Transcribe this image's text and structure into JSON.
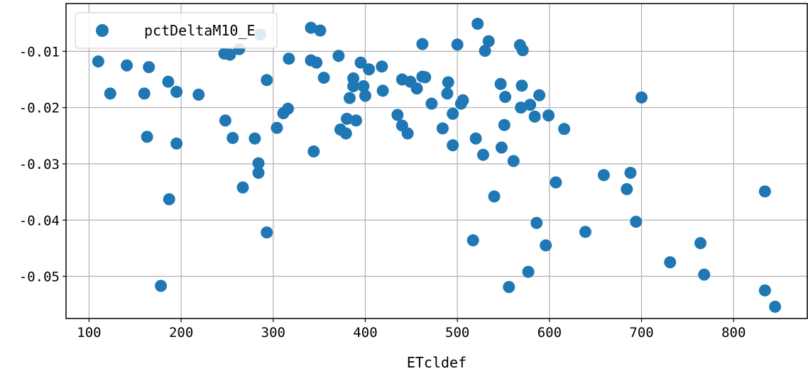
{
  "chart_data": {
    "type": "scatter",
    "xlabel": "ETcldef",
    "ylabel": "",
    "xlim": [
      75,
      880
    ],
    "ylim": [
      -0.0575,
      -0.0015
    ],
    "xticks": [
      100,
      200,
      300,
      400,
      500,
      600,
      700,
      800
    ],
    "xtick_labels": [
      "100",
      "200",
      "300",
      "400",
      "500",
      "600",
      "700",
      "800"
    ],
    "yticks": [
      -0.01,
      -0.02,
      -0.03,
      -0.04,
      -0.05
    ],
    "ytick_labels": [
      "-0.01",
      "-0.02",
      "-0.03",
      "-0.04",
      "-0.05"
    ],
    "grid": true,
    "legend_position": "top-left",
    "marker_color": "#1f77b4",
    "series": [
      {
        "name": "pctDeltaM10_E",
        "points": [
          [
            110,
            -0.0118
          ],
          [
            123,
            -0.0175
          ],
          [
            141,
            -0.0125
          ],
          [
            160,
            -0.0175
          ],
          [
            163,
            -0.0252
          ],
          [
            165,
            -0.0128
          ],
          [
            178,
            -0.0517
          ],
          [
            186,
            -0.0154
          ],
          [
            187,
            -0.0363
          ],
          [
            195,
            -0.0264
          ],
          [
            195,
            -0.0172
          ],
          [
            219,
            -0.0177
          ],
          [
            247,
            -0.0104
          ],
          [
            248,
            -0.0223
          ],
          [
            253,
            -0.0106
          ],
          [
            256,
            -0.0254
          ],
          [
            263,
            -0.0096
          ],
          [
            267,
            -0.0342
          ],
          [
            280,
            -0.0255
          ],
          [
            284,
            -0.0299
          ],
          [
            284,
            -0.0316
          ],
          [
            286,
            -0.007
          ],
          [
            293,
            -0.0422
          ],
          [
            293,
            -0.0151
          ],
          [
            304,
            -0.0236
          ],
          [
            311,
            -0.021
          ],
          [
            316,
            -0.0202
          ],
          [
            317,
            -0.0113
          ],
          [
            341,
            -0.0058
          ],
          [
            341,
            -0.0116
          ],
          [
            344,
            -0.0278
          ],
          [
            347,
            -0.012
          ],
          [
            351,
            -0.0063
          ],
          [
            355,
            -0.0147
          ],
          [
            371,
            -0.0108
          ],
          [
            373,
            -0.0239
          ],
          [
            379,
            -0.0246
          ],
          [
            380,
            -0.022
          ],
          [
            383,
            -0.0183
          ],
          [
            387,
            -0.0148
          ],
          [
            387,
            -0.0162
          ],
          [
            390,
            -0.0223
          ],
          [
            395,
            -0.012
          ],
          [
            398,
            -0.0162
          ],
          [
            400,
            -0.0179
          ],
          [
            404,
            -0.0132
          ],
          [
            418,
            -0.0127
          ],
          [
            419,
            -0.017
          ],
          [
            435,
            -0.0213
          ],
          [
            440,
            -0.015
          ],
          [
            440,
            -0.0232
          ],
          [
            446,
            -0.0246
          ],
          [
            449,
            -0.0154
          ],
          [
            456,
            -0.0166
          ],
          [
            462,
            -0.0087
          ],
          [
            462,
            -0.0145
          ],
          [
            465,
            -0.0146
          ],
          [
            472,
            -0.0193
          ],
          [
            484,
            -0.0237
          ],
          [
            489,
            -0.0175
          ],
          [
            490,
            -0.0155
          ],
          [
            495,
            -0.0211
          ],
          [
            495,
            -0.0267
          ],
          [
            500,
            -0.0088
          ],
          [
            504,
            -0.0193
          ],
          [
            506,
            -0.0187
          ],
          [
            517,
            -0.0436
          ],
          [
            520,
            -0.0255
          ],
          [
            522,
            -0.0051
          ],
          [
            528,
            -0.0284
          ],
          [
            530,
            -0.0099
          ],
          [
            534,
            -0.0082
          ],
          [
            540,
            -0.0358
          ],
          [
            547,
            -0.0158
          ],
          [
            548,
            -0.0271
          ],
          [
            551,
            -0.0231
          ],
          [
            552,
            -0.0181
          ],
          [
            556,
            -0.0519
          ],
          [
            561,
            -0.0295
          ],
          [
            568,
            -0.0089
          ],
          [
            569,
            -0.02
          ],
          [
            570,
            -0.0161
          ],
          [
            571,
            -0.0098
          ],
          [
            577,
            -0.0492
          ],
          [
            579,
            -0.0195
          ],
          [
            584,
            -0.0216
          ],
          [
            586,
            -0.0405
          ],
          [
            589,
            -0.0178
          ],
          [
            596,
            -0.0445
          ],
          [
            599,
            -0.0214
          ],
          [
            607,
            -0.0333
          ],
          [
            616,
            -0.0238
          ],
          [
            639,
            -0.0421
          ],
          [
            659,
            -0.032
          ],
          [
            684,
            -0.0345
          ],
          [
            688,
            -0.0316
          ],
          [
            694,
            -0.0403
          ],
          [
            700,
            -0.0182
          ],
          [
            731,
            -0.0475
          ],
          [
            764,
            -0.0441
          ],
          [
            768,
            -0.0497
          ],
          [
            834,
            -0.0349
          ],
          [
            834,
            -0.0525
          ],
          [
            845,
            -0.0554
          ]
        ]
      }
    ]
  }
}
